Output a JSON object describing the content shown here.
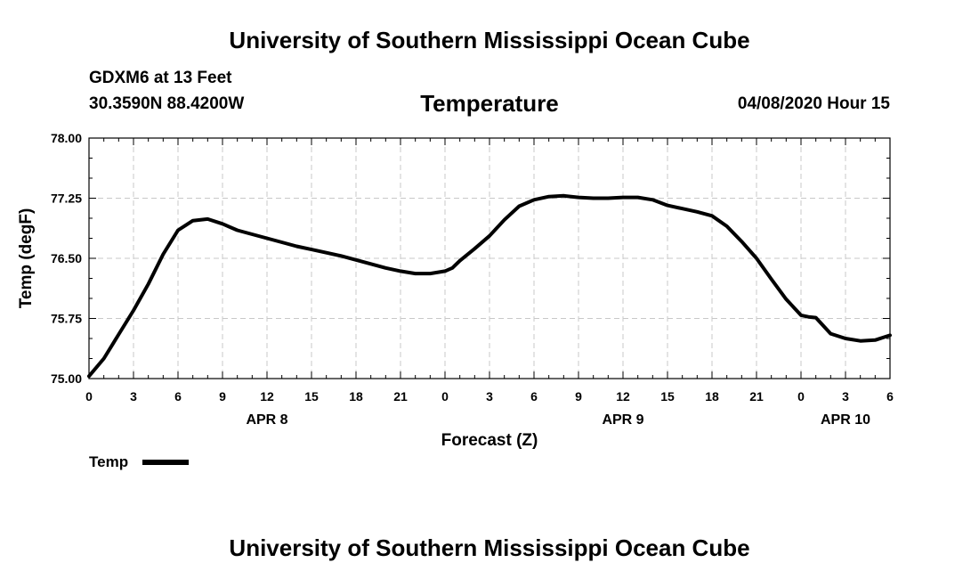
{
  "header": {
    "title": "University of Southern Mississippi Ocean Cube",
    "station": "GDXM6 at 13 Feet",
    "coords": "30.3590N 88.4200W",
    "datetime": "04/08/2020 Hour 15"
  },
  "footer": {
    "title": "University of Southern Mississippi Ocean Cube"
  },
  "legend": {
    "label": "Temp"
  },
  "chart_data": {
    "type": "line",
    "title": "Temperature",
    "xlabel": "Forecast (Z)",
    "ylabel": "Temp (degF)",
    "ylim": [
      75.0,
      78.0
    ],
    "xlim": [
      0,
      54
    ],
    "x_unit": "hours from APR 8 00Z",
    "yticks": [
      "75.00",
      "75.75",
      "76.50",
      "77.25",
      "78.00"
    ],
    "xtick_labels": [
      "0",
      "3",
      "6",
      "9",
      "12",
      "15",
      "18",
      "21",
      "0",
      "3",
      "6",
      "9",
      "12",
      "15",
      "18",
      "21",
      "0",
      "3",
      "6"
    ],
    "day_labels": [
      {
        "label": "APR 8",
        "x": 12
      },
      {
        "label": "APR 9",
        "x": 36
      },
      {
        "label": "APR 10",
        "x": 51
      }
    ],
    "grid": true,
    "series": [
      {
        "name": "Temp",
        "color": "#000000",
        "x": [
          0,
          1,
          2,
          3,
          4,
          5,
          6,
          7,
          8,
          9,
          10,
          11,
          12,
          13,
          14,
          15,
          16,
          17,
          18,
          19,
          20,
          21,
          22,
          23,
          24,
          24.5,
          25,
          26,
          27,
          28,
          29,
          30,
          31,
          32,
          33,
          34,
          35,
          36,
          37,
          38,
          39,
          40,
          41,
          42,
          43,
          44,
          45,
          46,
          47,
          48,
          48.5,
          49,
          50,
          51,
          52,
          53,
          54
        ],
        "values": [
          75.03,
          75.25,
          75.55,
          75.85,
          76.18,
          76.55,
          76.85,
          76.97,
          76.99,
          76.93,
          76.85,
          76.8,
          76.75,
          76.7,
          76.65,
          76.61,
          76.57,
          76.53,
          76.48,
          76.43,
          76.38,
          76.34,
          76.31,
          76.31,
          76.34,
          76.38,
          76.47,
          76.62,
          76.78,
          76.98,
          77.15,
          77.23,
          77.27,
          77.28,
          77.26,
          77.25,
          77.25,
          77.26,
          77.26,
          77.23,
          77.16,
          77.12,
          77.08,
          77.03,
          76.9,
          76.71,
          76.5,
          76.24,
          75.99,
          75.79,
          75.77,
          75.76,
          75.56,
          75.5,
          75.47,
          75.48,
          75.54
        ]
      }
    ]
  }
}
